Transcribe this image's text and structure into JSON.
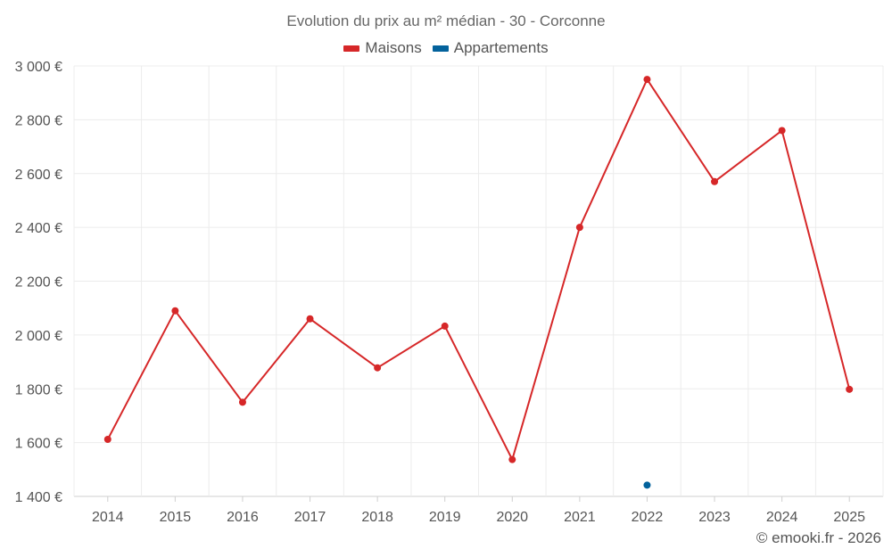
{
  "chart_data": {
    "type": "line",
    "title": "Evolution du prix au m² médian - 30 - Corconne",
    "categories": [
      "2014",
      "2015",
      "2016",
      "2017",
      "2018",
      "2019",
      "2020",
      "2021",
      "2022",
      "2023",
      "2024",
      "2025"
    ],
    "series": [
      {
        "name": "Maisons",
        "color": "#d62728",
        "values": [
          1612,
          2090,
          1750,
          2060,
          1878,
          2033,
          1537,
          2400,
          2950,
          2570,
          2760,
          1798
        ]
      },
      {
        "name": "Appartements",
        "color": "#03629c",
        "values": [
          null,
          null,
          null,
          null,
          null,
          null,
          null,
          null,
          1442,
          null,
          null,
          null
        ]
      }
    ],
    "ylim": [
      1400,
      3000
    ],
    "yticks": [
      1400,
      1600,
      1800,
      2000,
      2200,
      2400,
      2600,
      2800,
      3000
    ],
    "ytick_labels": [
      "1 400 €",
      "1 600 €",
      "1 800 €",
      "2 000 €",
      "2 200 €",
      "2 400 €",
      "2 600 €",
      "2 800 €",
      "3 000 €"
    ],
    "xlabel": "",
    "ylabel": "",
    "legend_position": "top-center",
    "grid": true
  },
  "credit": "© emooki.fr - 2026"
}
